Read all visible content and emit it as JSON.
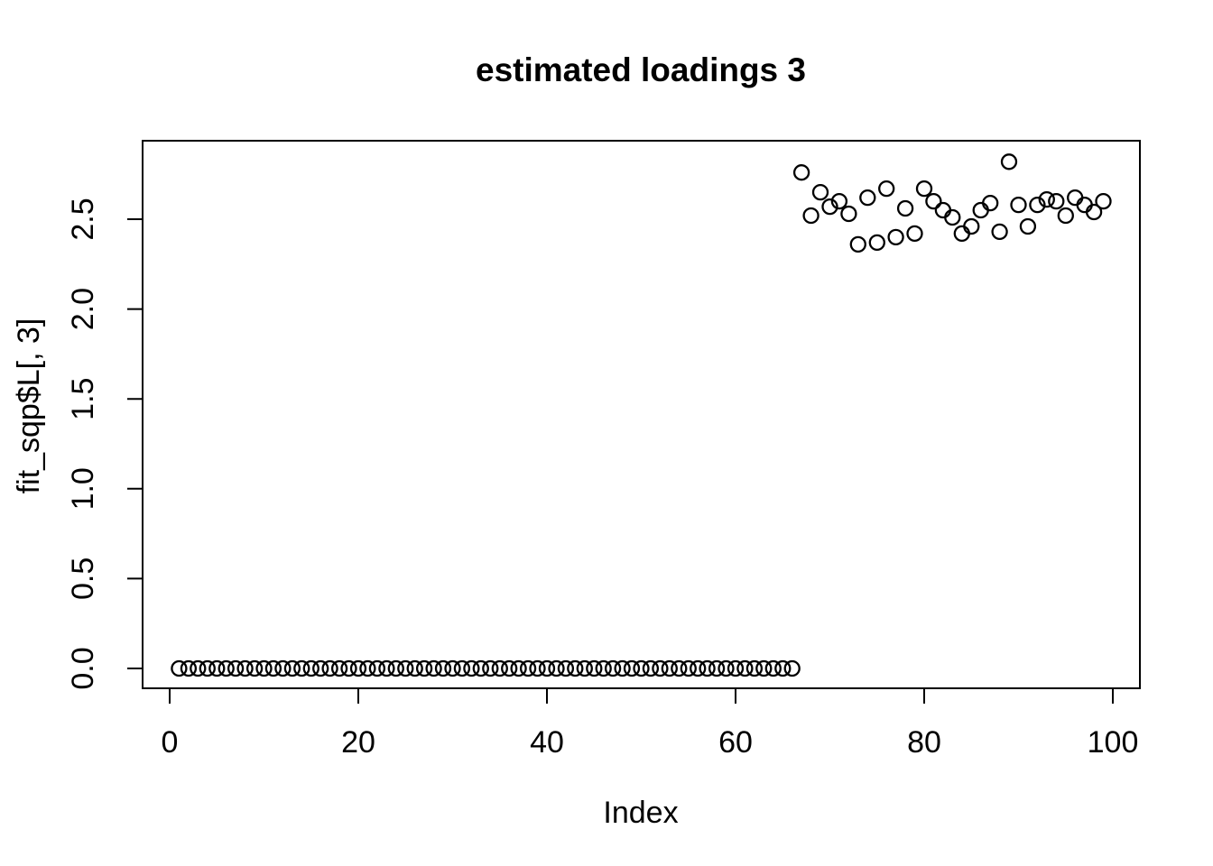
{
  "chart_data": {
    "type": "scatter",
    "title": "estimated loadings 3",
    "xlabel": "Index",
    "ylabel": "fit_sqp$L[, 3]",
    "marker": "open-circle",
    "marker_color": "#000000",
    "background_color": "#ffffff",
    "grid": false,
    "legend": false,
    "x_tick_labels": [
      "0",
      "20",
      "40",
      "60",
      "80",
      "100"
    ],
    "x_tick_values": [
      0,
      20,
      40,
      60,
      80,
      100
    ],
    "y_tick_labels": [
      "0.0",
      "0.5",
      "1.0",
      "1.5",
      "2.0",
      "2.5"
    ],
    "y_tick_values": [
      0.0,
      0.5,
      1.0,
      1.5,
      2.0,
      2.5
    ],
    "xlim": [
      -3,
      104
    ],
    "ylim": [
      -0.11,
      2.94
    ],
    "n_points": 99,
    "x_start": 1,
    "series": [
      {
        "name": "fit_sqp$L[, 3]",
        "values": [
          0,
          0,
          0,
          0,
          0,
          0,
          0,
          0,
          0,
          0,
          0,
          0,
          0,
          0,
          0,
          0,
          0,
          0,
          0,
          0,
          0,
          0,
          0,
          0,
          0,
          0,
          0,
          0,
          0,
          0,
          0,
          0,
          0,
          0,
          0,
          0,
          0,
          0,
          0,
          0,
          0,
          0,
          0,
          0,
          0,
          0,
          0,
          0,
          0,
          0,
          0,
          0,
          0,
          0,
          0,
          0,
          0,
          0,
          0,
          0,
          0,
          0,
          0,
          0,
          0,
          0,
          2.76,
          2.52,
          2.65,
          2.57,
          2.6,
          2.53,
          2.36,
          2.62,
          2.37,
          2.67,
          2.4,
          2.56,
          2.42,
          2.67,
          2.6,
          2.55,
          2.51,
          2.42,
          2.46,
          2.55,
          2.59,
          2.43,
          2.82,
          2.58,
          2.46,
          2.58,
          2.61,
          2.6,
          2.52,
          2.62,
          2.58,
          2.54,
          2.6
        ]
      }
    ]
  }
}
